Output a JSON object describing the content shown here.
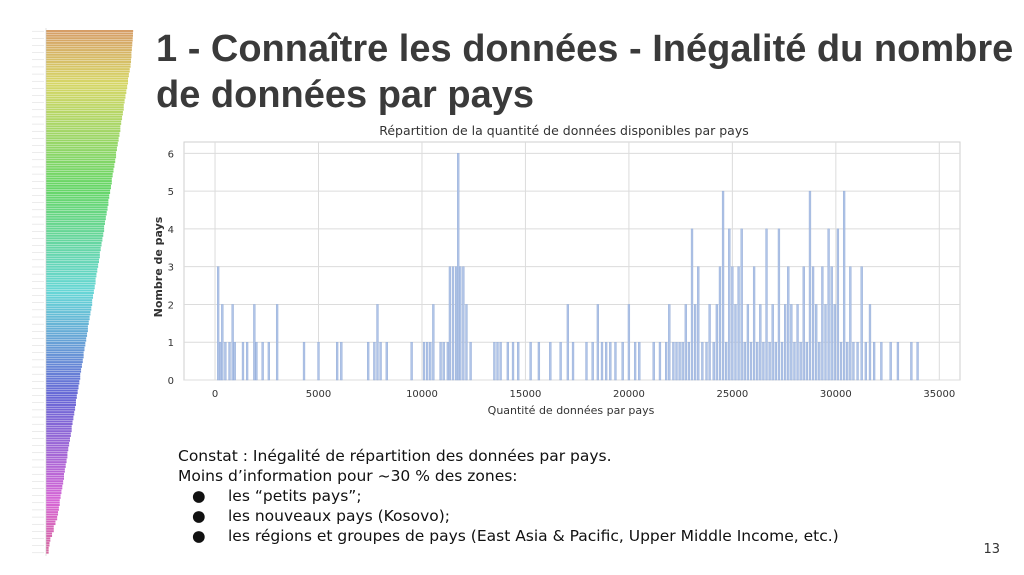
{
  "slide": {
    "title": "1 - Connaître les données - Inégalité du nombre de données par pays",
    "page_number": "13"
  },
  "notes": {
    "intro_line1": "Constat : Inégalité de répartition des données par pays.",
    "intro_line2": "Moins d’information pour ~30 % des zones:",
    "bullets": [
      "les “petits pays”;",
      "les nouveaux pays (Kosovo);",
      "les régions et groupes de pays (East Asia & Pacific, Upper Middle Income, etc.)"
    ],
    "bullet_glyph": "●"
  },
  "colors": {
    "bar": "#b0c4e8",
    "bar_stroke": "#8fa8d4",
    "grid": "#dcdcdc",
    "text": "#333333"
  },
  "chart_data": {
    "type": "bar",
    "title": "Répartition de la quantité de données disponibles par pays",
    "xlabel": "Quantité de données par pays",
    "ylabel": "Nombre de pays",
    "xlim": [
      -1500,
      36000
    ],
    "ylim": [
      0,
      6.3
    ],
    "xticks": [
      "0",
      "5000",
      "10000",
      "15000",
      "20000",
      "25000",
      "30000",
      "35000"
    ],
    "xtick_values": [
      0,
      5000,
      10000,
      15000,
      20000,
      25000,
      30000,
      35000
    ],
    "yticks": [
      "0",
      "1",
      "2",
      "3",
      "4",
      "5",
      "6"
    ],
    "ytick_values": [
      0,
      1,
      2,
      3,
      4,
      5,
      6
    ],
    "grid": true,
    "bin_width": 100,
    "bins": [
      {
        "x": 150,
        "y": 3
      },
      {
        "x": 250,
        "y": 1
      },
      {
        "x": 350,
        "y": 2
      },
      {
        "x": 500,
        "y": 1
      },
      {
        "x": 700,
        "y": 1
      },
      {
        "x": 850,
        "y": 2
      },
      {
        "x": 950,
        "y": 1
      },
      {
        "x": 1350,
        "y": 1
      },
      {
        "x": 1550,
        "y": 1
      },
      {
        "x": 1900,
        "y": 2
      },
      {
        "x": 2000,
        "y": 1
      },
      {
        "x": 2300,
        "y": 1
      },
      {
        "x": 2600,
        "y": 1
      },
      {
        "x": 3000,
        "y": 2
      },
      {
        "x": 4300,
        "y": 1
      },
      {
        "x": 5000,
        "y": 1
      },
      {
        "x": 5900,
        "y": 1
      },
      {
        "x": 6100,
        "y": 1
      },
      {
        "x": 7400,
        "y": 1
      },
      {
        "x": 7700,
        "y": 1
      },
      {
        "x": 7850,
        "y": 2
      },
      {
        "x": 8000,
        "y": 1
      },
      {
        "x": 8300,
        "y": 1
      },
      {
        "x": 9500,
        "y": 1
      },
      {
        "x": 10100,
        "y": 1
      },
      {
        "x": 10250,
        "y": 1
      },
      {
        "x": 10400,
        "y": 1
      },
      {
        "x": 10550,
        "y": 2
      },
      {
        "x": 10900,
        "y": 1
      },
      {
        "x": 11050,
        "y": 1
      },
      {
        "x": 11250,
        "y": 1
      },
      {
        "x": 11350,
        "y": 3
      },
      {
        "x": 11500,
        "y": 3
      },
      {
        "x": 11650,
        "y": 3
      },
      {
        "x": 11750,
        "y": 6
      },
      {
        "x": 11850,
        "y": 3
      },
      {
        "x": 12000,
        "y": 3
      },
      {
        "x": 12150,
        "y": 2
      },
      {
        "x": 12350,
        "y": 1
      },
      {
        "x": 13500,
        "y": 1
      },
      {
        "x": 13650,
        "y": 1
      },
      {
        "x": 13800,
        "y": 1
      },
      {
        "x": 14150,
        "y": 1
      },
      {
        "x": 14400,
        "y": 1
      },
      {
        "x": 14650,
        "y": 1
      },
      {
        "x": 15250,
        "y": 1
      },
      {
        "x": 15650,
        "y": 1
      },
      {
        "x": 16200,
        "y": 1
      },
      {
        "x": 16700,
        "y": 1
      },
      {
        "x": 17050,
        "y": 2
      },
      {
        "x": 17300,
        "y": 1
      },
      {
        "x": 17950,
        "y": 1
      },
      {
        "x": 18250,
        "y": 1
      },
      {
        "x": 18500,
        "y": 2
      },
      {
        "x": 18700,
        "y": 1
      },
      {
        "x": 18900,
        "y": 1
      },
      {
        "x": 19100,
        "y": 1
      },
      {
        "x": 19350,
        "y": 1
      },
      {
        "x": 19700,
        "y": 1
      },
      {
        "x": 20000,
        "y": 2
      },
      {
        "x": 20300,
        "y": 1
      },
      {
        "x": 20500,
        "y": 1
      },
      {
        "x": 21200,
        "y": 1
      },
      {
        "x": 21500,
        "y": 1
      },
      {
        "x": 21800,
        "y": 1
      },
      {
        "x": 21950,
        "y": 2
      },
      {
        "x": 22150,
        "y": 1
      },
      {
        "x": 22300,
        "y": 1
      },
      {
        "x": 22450,
        "y": 1
      },
      {
        "x": 22600,
        "y": 1
      },
      {
        "x": 22750,
        "y": 2
      },
      {
        "x": 22900,
        "y": 1
      },
      {
        "x": 23050,
        "y": 4
      },
      {
        "x": 23200,
        "y": 2
      },
      {
        "x": 23350,
        "y": 3
      },
      {
        "x": 23550,
        "y": 1
      },
      {
        "x": 23750,
        "y": 1
      },
      {
        "x": 23900,
        "y": 2
      },
      {
        "x": 24100,
        "y": 1
      },
      {
        "x": 24250,
        "y": 2
      },
      {
        "x": 24400,
        "y": 3
      },
      {
        "x": 24550,
        "y": 5
      },
      {
        "x": 24700,
        "y": 1
      },
      {
        "x": 24850,
        "y": 4
      },
      {
        "x": 25000,
        "y": 3
      },
      {
        "x": 25150,
        "y": 2
      },
      {
        "x": 25300,
        "y": 3
      },
      {
        "x": 25450,
        "y": 4
      },
      {
        "x": 25600,
        "y": 1
      },
      {
        "x": 25750,
        "y": 2
      },
      {
        "x": 25900,
        "y": 1
      },
      {
        "x": 26050,
        "y": 3
      },
      {
        "x": 26200,
        "y": 1
      },
      {
        "x": 26350,
        "y": 2
      },
      {
        "x": 26500,
        "y": 1
      },
      {
        "x": 26650,
        "y": 4
      },
      {
        "x": 26800,
        "y": 1
      },
      {
        "x": 26950,
        "y": 2
      },
      {
        "x": 27100,
        "y": 1
      },
      {
        "x": 27250,
        "y": 4
      },
      {
        "x": 27400,
        "y": 1
      },
      {
        "x": 27550,
        "y": 2
      },
      {
        "x": 27700,
        "y": 3
      },
      {
        "x": 27850,
        "y": 2
      },
      {
        "x": 28000,
        "y": 1
      },
      {
        "x": 28150,
        "y": 2
      },
      {
        "x": 28300,
        "y": 1
      },
      {
        "x": 28450,
        "y": 3
      },
      {
        "x": 28600,
        "y": 1
      },
      {
        "x": 28750,
        "y": 5
      },
      {
        "x": 28900,
        "y": 3
      },
      {
        "x": 29050,
        "y": 2
      },
      {
        "x": 29200,
        "y": 1
      },
      {
        "x": 29350,
        "y": 3
      },
      {
        "x": 29500,
        "y": 2
      },
      {
        "x": 29650,
        "y": 4
      },
      {
        "x": 29800,
        "y": 3
      },
      {
        "x": 29950,
        "y": 2
      },
      {
        "x": 30100,
        "y": 4
      },
      {
        "x": 30250,
        "y": 1
      },
      {
        "x": 30400,
        "y": 5
      },
      {
        "x": 30550,
        "y": 1
      },
      {
        "x": 30700,
        "y": 3
      },
      {
        "x": 30850,
        "y": 1
      },
      {
        "x": 31050,
        "y": 1
      },
      {
        "x": 31250,
        "y": 3
      },
      {
        "x": 31450,
        "y": 1
      },
      {
        "x": 31650,
        "y": 2
      },
      {
        "x": 31850,
        "y": 1
      },
      {
        "x": 32200,
        "y": 1
      },
      {
        "x": 32650,
        "y": 1
      },
      {
        "x": 33000,
        "y": 1
      },
      {
        "x": 33650,
        "y": 1
      },
      {
        "x": 33950,
        "y": 1
      }
    ]
  },
  "sidebar_chart": {
    "type": "bar",
    "bar_count": 220,
    "values": [
      1.0,
      0.99,
      0.98,
      0.96,
      0.94,
      0.92,
      0.9,
      0.89,
      0.88,
      0.87,
      0.86,
      0.85,
      0.84,
      0.83,
      0.82,
      0.81,
      0.8,
      0.79,
      0.78,
      0.77,
      0.76,
      0.75,
      0.74,
      0.73,
      0.72,
      0.71,
      0.7,
      0.69,
      0.68,
      0.67,
      0.66,
      0.65,
      0.64,
      0.63,
      0.62,
      0.61,
      0.6,
      0.59,
      0.58,
      0.57,
      0.56,
      0.55,
      0.54,
      0.53,
      0.52,
      0.51,
      0.5,
      0.49,
      0.48,
      0.47,
      0.46,
      0.45,
      0.44,
      0.43,
      0.42,
      0.41,
      0.4,
      0.39,
      0.38,
      0.37,
      0.36,
      0.35,
      0.34,
      0.33,
      0.32,
      0.31,
      0.3,
      0.29,
      0.28,
      0.27,
      0.26,
      0.25,
      0.24,
      0.23,
      0.22,
      0.21,
      0.2,
      0.19,
      0.18,
      0.17,
      0.16,
      0.15,
      0.14,
      0.13,
      0.12,
      0.11,
      0.1,
      0.09,
      0.08,
      0.07,
      0.06,
      0.05,
      0.04,
      0.035,
      0.03,
      0.025,
      0.02,
      0.015,
      0.012,
      0.01
    ]
  }
}
